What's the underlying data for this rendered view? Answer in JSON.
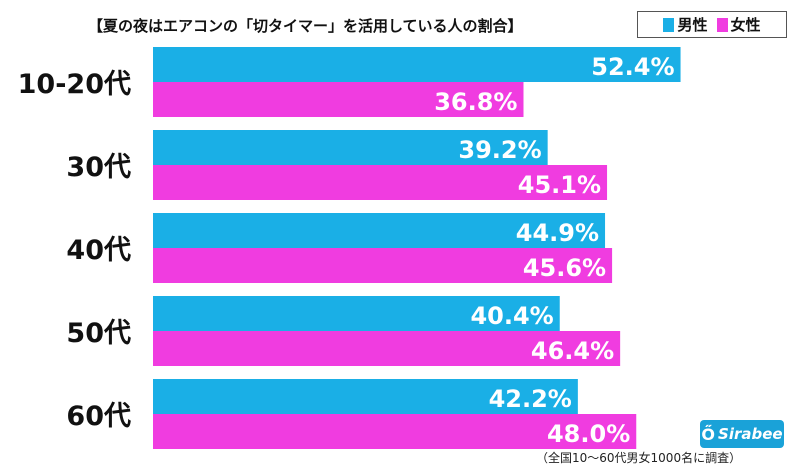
{
  "chart_data": {
    "type": "bar",
    "orientation": "horizontal",
    "title": "【夏の夜はエアコンの「切タイマー」を活用している人の割合】",
    "categories": [
      "10-20代",
      "30代",
      "40代",
      "50代",
      "60代"
    ],
    "series": [
      {
        "name": "男性",
        "color": "#1aafe6",
        "values": [
          52.4,
          39.2,
          44.9,
          40.4,
          42.2
        ]
      },
      {
        "name": "女性",
        "color": "#f03ce0",
        "values": [
          36.8,
          45.1,
          45.6,
          46.4,
          48.0
        ]
      }
    ],
    "value_suffix": "%",
    "xlim": [
      0,
      59
    ],
    "grid": false,
    "legend_position": "top-right"
  },
  "logo": {
    "mark": "ő",
    "name": "Sirabee"
  },
  "source_note": "（全国10～60代男女1000名に調査）"
}
